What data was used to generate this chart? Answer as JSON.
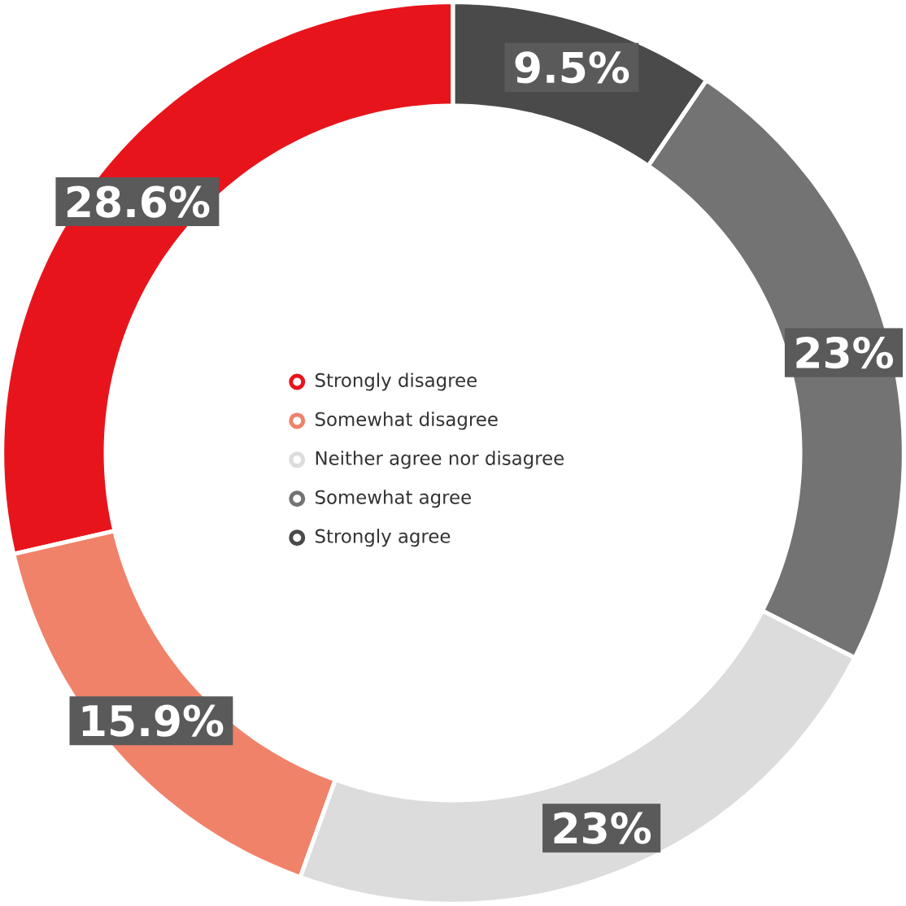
{
  "chart_data": {
    "type": "donut",
    "categories": [
      "Strongly disagree",
      "Somewhat disagree",
      "Neither agree nor disagree",
      "Somewhat agree",
      "Strongly agree"
    ],
    "values": [
      28.6,
      15.9,
      23,
      23,
      9.5
    ],
    "value_labels": [
      "28.6%",
      "15.9%",
      "23%",
      "23%",
      "9.5%"
    ],
    "colors": [
      "#e8141c",
      "#f0826a",
      "#dcdcdc",
      "#737373",
      "#4a4a4a"
    ],
    "legend": "center"
  }
}
